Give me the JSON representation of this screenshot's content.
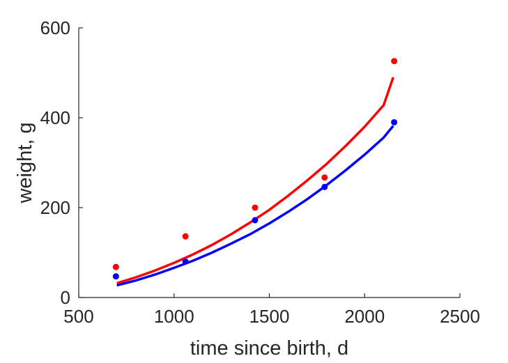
{
  "chart_data": {
    "type": "scatter",
    "title": "",
    "xlabel": "time since birth, d",
    "ylabel": "weight, g",
    "xlim": [
      500,
      2500
    ],
    "ylim": [
      0,
      600
    ],
    "xticks": [
      500,
      1000,
      1500,
      2000,
      2500
    ],
    "yticks": [
      0,
      200,
      400,
      600
    ],
    "xtick_labels": [
      "500",
      "1000",
      "1500",
      "2000",
      "2500"
    ],
    "ytick_labels": [
      "0",
      "200",
      "400",
      "600"
    ],
    "grid": false,
    "legend": "none",
    "series": [
      {
        "color": "#ff0000",
        "points": [
          {
            "x": 695,
            "y": 68
          },
          {
            "x": 1060,
            "y": 136
          },
          {
            "x": 1425,
            "y": 200
          },
          {
            "x": 1790,
            "y": 267
          },
          {
            "x": 2155,
            "y": 526
          }
        ],
        "fit": {
          "x": [
            700,
            800,
            900,
            1000,
            1100,
            1200,
            1300,
            1400,
            1500,
            1600,
            1700,
            1800,
            1900,
            2000,
            2100,
            2150
          ],
          "y": [
            32,
            45,
            60,
            77,
            96,
            117,
            141,
            167,
            195,
            227,
            261,
            297,
            337,
            380,
            428,
            490
          ]
        }
      },
      {
        "color": "#0000ff",
        "points": [
          {
            "x": 695,
            "y": 47
          },
          {
            "x": 1060,
            "y": 80
          },
          {
            "x": 1425,
            "y": 172
          },
          {
            "x": 1790,
            "y": 246
          },
          {
            "x": 2155,
            "y": 390
          }
        ],
        "fit": {
          "x": [
            700,
            800,
            900,
            1000,
            1100,
            1200,
            1300,
            1400,
            1500,
            1600,
            1700,
            1800,
            1900,
            2000,
            2100,
            2150
          ],
          "y": [
            27,
            38,
            51,
            66,
            82,
            100,
            120,
            141,
            165,
            191,
            219,
            250,
            283,
            318,
            356,
            382
          ]
        }
      }
    ]
  }
}
